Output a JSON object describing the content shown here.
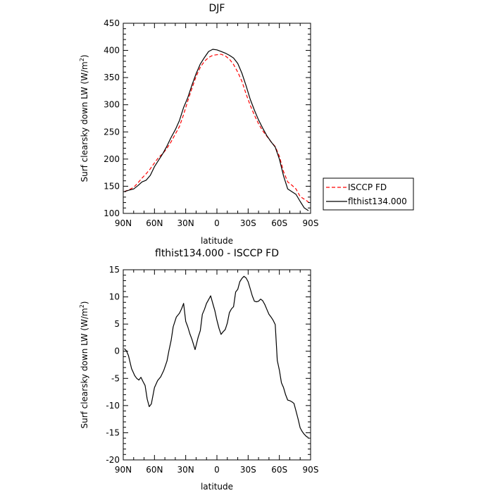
{
  "chart_data": [
    {
      "type": "line",
      "title": "DJF",
      "xlabel": "latitude",
      "ylabel": "Surf clearsky down LW (W/m",
      "ylabel_sup": "2",
      "ylabel_end": ")",
      "xlim": [
        90,
        -90
      ],
      "ylim": [
        100,
        450
      ],
      "x_ticks": [
        90,
        60,
        30,
        0,
        -30,
        -60,
        -90
      ],
      "x_tick_labels": [
        "90N",
        "60N",
        "30N",
        "0",
        "30S",
        "60S",
        "90S"
      ],
      "y_ticks": [
        100,
        150,
        200,
        250,
        300,
        350,
        400,
        450
      ],
      "y_tick_labels": [
        "100",
        "150",
        "200",
        "250",
        "300",
        "350",
        "400",
        "450"
      ],
      "legend_position": "right",
      "series": [
        {
          "name": "ISCCP FD",
          "color": "#ff0000",
          "dash": "dashed",
          "x": [
            89,
            84,
            80,
            76,
            72,
            68,
            64,
            60,
            56,
            52,
            48,
            44,
            40,
            36,
            32,
            28,
            24,
            20,
            16,
            12,
            8,
            4,
            0,
            -4,
            -8,
            -12,
            -16,
            -20,
            -24,
            -28,
            -32,
            -36,
            -40,
            -44,
            -48,
            -52,
            -56,
            -60,
            -64,
            -68,
            -72,
            -76,
            -80,
            -84,
            -88
          ],
          "y": [
            140,
            144,
            148,
            156,
            165,
            173,
            182,
            193,
            203,
            210,
            220,
            232,
            246,
            260,
            282,
            307,
            330,
            352,
            369,
            380,
            387,
            391,
            392,
            393,
            390,
            384,
            374,
            360,
            343,
            320,
            299,
            281,
            265,
            252,
            242,
            232,
            223,
            205,
            177,
            158,
            152,
            145,
            131,
            126,
            121
          ]
        },
        {
          "name": "flthist134.000",
          "color": "#000000",
          "dash": "solid",
          "x": [
            89,
            84,
            80,
            76,
            72,
            68,
            64,
            60,
            56,
            52,
            48,
            44,
            40,
            36,
            32,
            28,
            24,
            20,
            16,
            12,
            8,
            4,
            0,
            -4,
            -8,
            -12,
            -16,
            -20,
            -24,
            -28,
            -32,
            -36,
            -40,
            -44,
            -48,
            -52,
            -56,
            -60,
            -64,
            -68,
            -72,
            -76,
            -80,
            -84,
            -88
          ],
          "y": [
            140,
            143,
            145,
            151,
            158,
            161,
            170,
            186,
            198,
            210,
            224,
            240,
            254,
            271,
            295,
            313,
            336,
            357,
            375,
            387,
            398,
            402,
            401,
            398,
            395,
            391,
            386,
            376,
            358,
            335,
            310,
            290,
            272,
            257,
            243,
            232,
            222,
            200,
            169,
            145,
            140,
            135,
            122,
            110,
            105
          ]
        }
      ]
    },
    {
      "type": "line",
      "title": "flthist134.000 - ISCCP FD",
      "xlabel": "latitude",
      "ylabel": "Surf clearsky down LW (W/m",
      "ylabel_sup": "2",
      "ylabel_end": ")",
      "xlim": [
        90,
        -90
      ],
      "ylim": [
        -20,
        15
      ],
      "x_ticks": [
        90,
        60,
        30,
        0,
        -30,
        -60,
        -90
      ],
      "x_tick_labels": [
        "90N",
        "60N",
        "30N",
        "0",
        "30S",
        "60S",
        "90S"
      ],
      "y_ticks": [
        -20,
        -15,
        -10,
        -5,
        0,
        5,
        10,
        15
      ],
      "y_tick_labels": [
        "-20",
        "-15",
        "-10",
        "-5",
        "0",
        "5",
        "10",
        "15"
      ],
      "series": [
        {
          "color": "#000000",
          "dash": "solid",
          "x": [
            89,
            87,
            85,
            82,
            79,
            77,
            75,
            73,
            71,
            69,
            67,
            65,
            63,
            60,
            57,
            54,
            51,
            48,
            46,
            44,
            42,
            39,
            36,
            34,
            32,
            30,
            28,
            26,
            24,
            21,
            18,
            16,
            14,
            12,
            10,
            8,
            6,
            4,
            2,
            0,
            -2,
            -4,
            -6,
            -8,
            -10,
            -12,
            -14,
            -16,
            -18,
            -20,
            -22,
            -24,
            -26,
            -28,
            -30,
            -32,
            -34,
            -36,
            -38,
            -40,
            -42,
            -44,
            -46,
            -48,
            -50,
            -52,
            -54,
            -56,
            -58,
            -60,
            -62,
            -64,
            -66,
            -68,
            -70,
            -72,
            -74,
            -76,
            -78,
            -80,
            -82,
            -84,
            -86,
            -88
          ],
          "y": [
            0.5,
            0.1,
            -0.8,
            -3.2,
            -4.5,
            -5.0,
            -5.3,
            -4.8,
            -5.6,
            -6.3,
            -8.8,
            -10.2,
            -9.7,
            -6.7,
            -5.4,
            -4.7,
            -3.5,
            -1.8,
            0.2,
            2.0,
            4.5,
            6.3,
            7.0,
            7.8,
            8.8,
            5.5,
            4.5,
            3.2,
            2.2,
            0.3,
            2.6,
            3.8,
            6.8,
            7.7,
            8.8,
            9.5,
            10.2,
            8.8,
            7.5,
            5.7,
            4.2,
            3.1,
            3.6,
            4.0,
            5.2,
            7.1,
            7.8,
            8.2,
            10.9,
            11.4,
            12.8,
            13.4,
            13.8,
            13.5,
            12.8,
            11.5,
            10.2,
            9.2,
            9.1,
            9.2,
            9.6,
            9.3,
            8.6,
            7.7,
            6.8,
            6.3,
            5.7,
            4.9,
            -1.7,
            -3.5,
            -5.8,
            -6.7,
            -8.0,
            -9.0,
            -9.1,
            -9.3,
            -9.6,
            -11.0,
            -12.5,
            -14.1,
            -14.8,
            -15.3,
            -15.7,
            -15.9
          ]
        }
      ]
    }
  ]
}
